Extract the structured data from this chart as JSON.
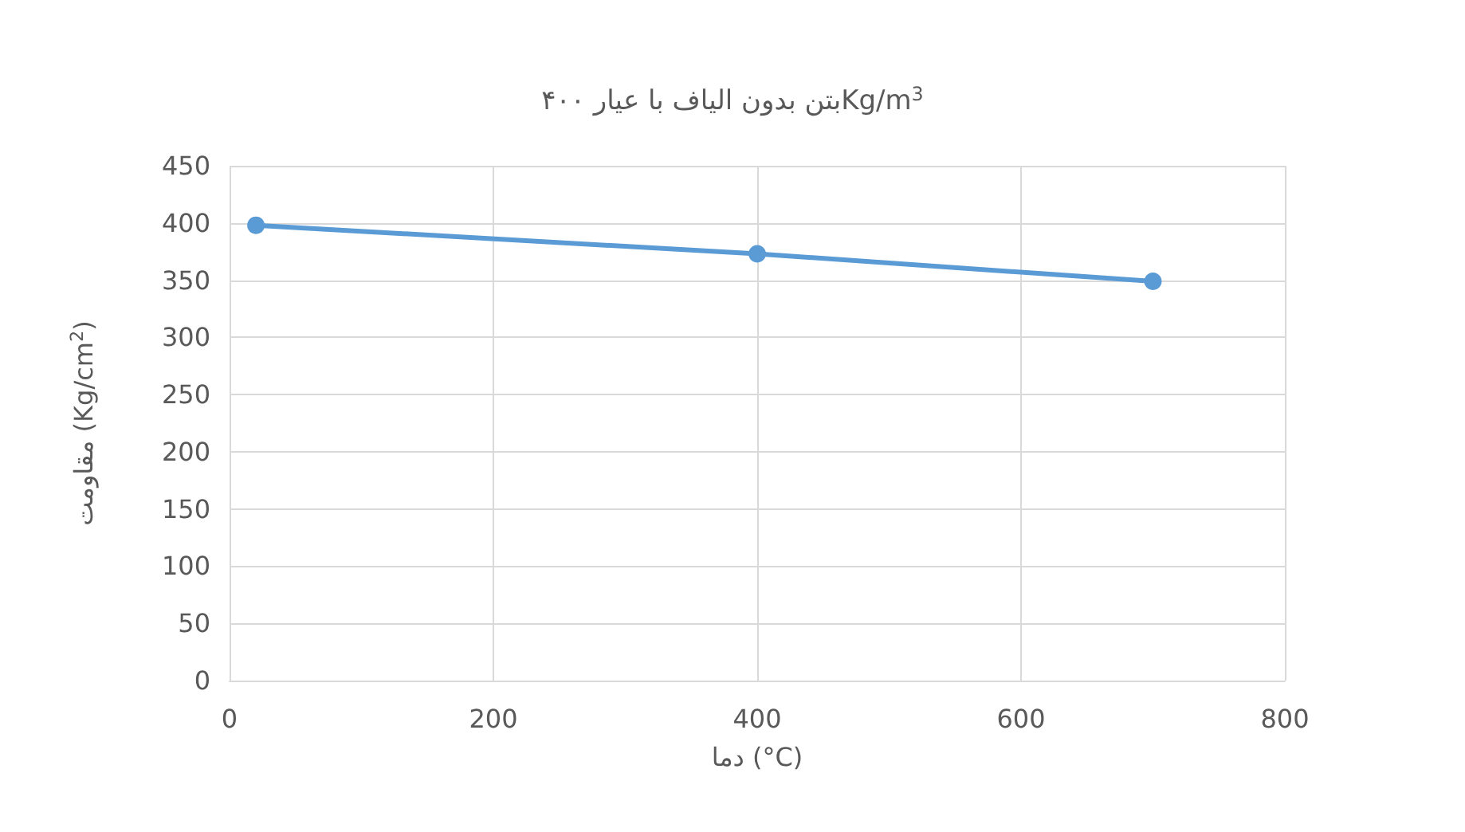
{
  "chart_data": {
    "type": "line",
    "title": "بتن بدون الیاف با عیار ۴۰۰Kg/m$^{3}$",
    "xlabel": "دما (°C)",
    "ylabel": "مقاومت (Kg/cm$^{2}$)",
    "x": [
      20,
      400,
      700
    ],
    "series": [
      {
        "color": "#5b9bd5",
        "values": [
          398,
          373,
          349
        ]
      }
    ],
    "xlim": [
      0,
      800
    ],
    "xticks": [
      0,
      200,
      400,
      600,
      800
    ],
    "ylim": [
      0,
      450
    ],
    "yticks": [
      0,
      50,
      100,
      150,
      200,
      250,
      300,
      350,
      400,
      450
    ],
    "grid": true,
    "marker": "circle",
    "line_style": "solid"
  }
}
